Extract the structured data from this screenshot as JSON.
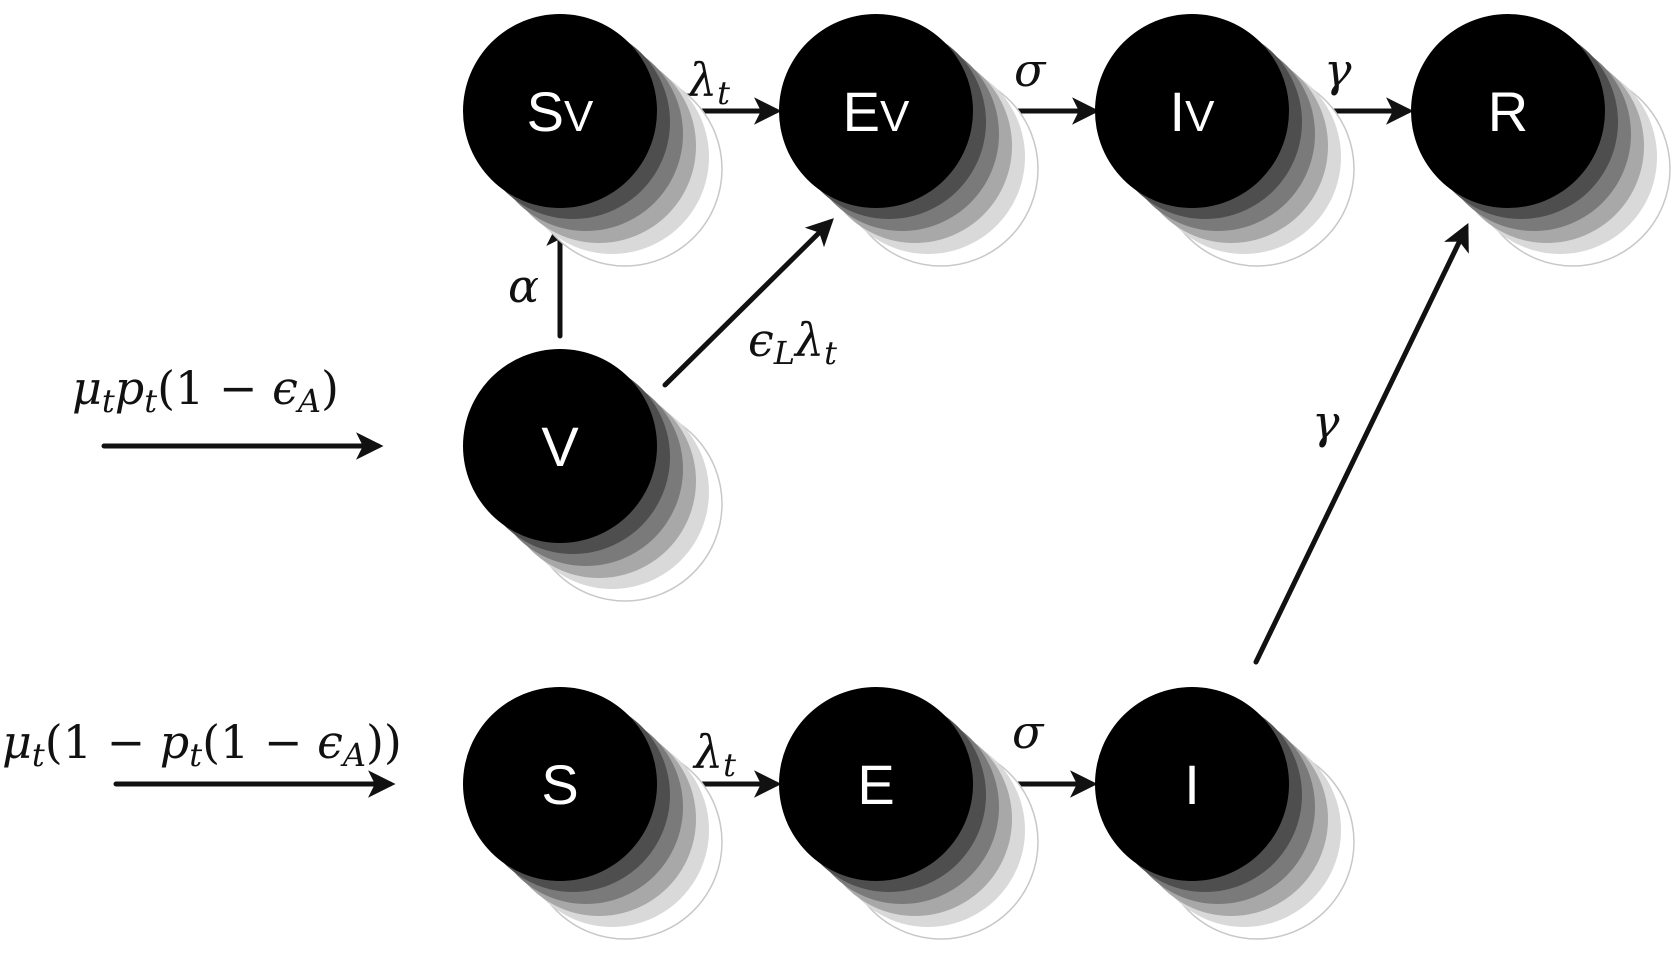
{
  "nodes": {
    "sv": {
      "main": "S",
      "sub": "V"
    },
    "ev": {
      "main": "E",
      "sub": "V"
    },
    "iv": {
      "main": "I",
      "sub": "V"
    },
    "r": {
      "main": "R",
      "sub": ""
    },
    "v": {
      "main": "V",
      "sub": ""
    },
    "s": {
      "main": "S",
      "sub": ""
    },
    "e": {
      "main": "E",
      "sub": ""
    },
    "i": {
      "main": "I",
      "sub": ""
    }
  },
  "edges": {
    "sv_ev": {
      "sym": "λ",
      "sub": "t"
    },
    "ev_iv": {
      "sym": "σ"
    },
    "iv_r": {
      "sym": "γ"
    },
    "v_sv": {
      "sym": "α"
    },
    "v_ev": {
      "sym1": "ϵ",
      "sub1": "L",
      "sym2": "λ",
      "sub2": "t"
    },
    "s_e": {
      "sym": "λ",
      "sub": "t"
    },
    "e_i": {
      "sym": "σ"
    },
    "i_r": {
      "sym": "γ"
    },
    "in_v": {
      "a": "μ",
      "as": "t",
      "b": "p",
      "bs": "t",
      "c": "(1 − ",
      "d": "ϵ",
      "ds": "A",
      "e": ")"
    },
    "in_s": {
      "a": "μ",
      "as": "t",
      "b": "(1 − ",
      "c": "p",
      "cs": "t",
      "d": "(1 − ",
      "e": "ϵ",
      "es": "A",
      "f": "))"
    }
  },
  "colors": {
    "node": "#000000",
    "shadow": "#555555",
    "edge": "#111111"
  }
}
